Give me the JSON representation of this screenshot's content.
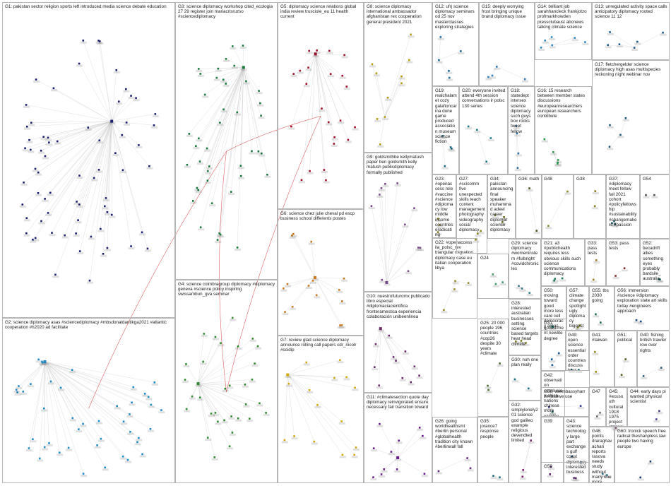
{
  "colors": {
    "background": "#ffffff",
    "box_border": "#b5b5b5",
    "edge_gray": "#c8c8c8",
    "edge_red": "#d23c3c"
  },
  "groups": [
    {
      "id": "G1",
      "label": "G1: pakistan sector religion sports left introduced media science debate education",
      "color": "#1b1e6e",
      "nodes": 70
    },
    {
      "id": "G2",
      "label": "G2: science diplomacy asas #sciencediplomacy #mbsdonaldantikga2021 #atlantic cooperation #h2020 ad facilitate",
      "color": "#1f8bc8",
      "nodes": 45
    },
    {
      "id": "G3",
      "label": "G3: science diplomacy workshop cited_ecologia 27 29 register join mariacrisruzso #sciencediplomacy",
      "color": "#1a7a3e",
      "nodes": 44
    },
    {
      "id": "G4",
      "label": "G4: science coimbragroup diplomacy #diplomacy geneva #science policy inspiring swissambun_gva seminar",
      "color": "#2e8b2e",
      "nodes": 33
    },
    {
      "id": "G5",
      "label": "G5: diplomacy science relations global india review trusciole_eu 11 health current",
      "color": "#a0102a",
      "nodes": 24
    },
    {
      "id": "G6",
      "label": "G6: science chez julie cheval pd escp business school differents postes",
      "color": "#c8781e",
      "nodes": 16
    },
    {
      "id": "G7",
      "label": "G7: review glad science diplomacy announce rolling call papers cdr_nicolr #scidip",
      "color": "#d2a80a",
      "nodes": 16
    },
    {
      "id": "G8",
      "label": "G8: science diplomacy international ambassador afghanistan rex cooperation general president 2021",
      "color": "#b59a0a",
      "nodes": 10
    },
    {
      "id": "G9",
      "label": "G9: goldsmithbe kellymatush paper ben goldsmith kelly matush publicdiplomacy formally published",
      "color": "#7a4a8a",
      "nodes": 12
    },
    {
      "id": "G10",
      "label": "G10: nuestrofuturomx publicado libro especial #diplomaciacientifica fronteramestica experiencia colaboración unibeenlinea",
      "color": "#6a2a6a",
      "nodes": 12
    },
    {
      "id": "G11",
      "label": "G11: #climatesection quote day diplomacy reinvigorated ensure necessary fair transition toward",
      "color": "#6a1a8a",
      "nodes": 12
    },
    {
      "id": "G12",
      "label": "G12: ufrj science diplomacy seminars od 25 nov masterclasses exploring strategies",
      "color": "#1a6a9a",
      "nodes": 5
    },
    {
      "id": "G13",
      "label": "G13: unregulated activity space calls anticipatory diplomacy rooted science 11 12",
      "color": "#1a5a8a",
      "nodes": 6
    },
    {
      "id": "G14",
      "label": "G14: brilliant job sarahhancleck frankjotzo profmarkhowden pressclubaust abcnews talking climate science",
      "color": "#2a8ac8",
      "nodes": 6
    },
    {
      "id": "G15",
      "label": "G15: deeply worrying frost bringing unique brand diplomacy issue",
      "color": "#2a7ab8",
      "nodes": 4
    },
    {
      "id": "G16",
      "label": "G16: 15 research between member states discussions #europeanresearchers european researchers contribute",
      "color": "#2a9a4a",
      "nodes": 5
    },
    {
      "id": "G17",
      "label": "G17: fletchergelder science diplomacy high asas multispecies reckoning night webinar nov",
      "color": "#1a5a7a",
      "nodes": 4
    },
    {
      "id": "G18",
      "label": "G18: statedept intersex science diplomacy such guys box rocks tweet fellow",
      "color": "#2a6a9a",
      "nodes": 4
    },
    {
      "id": "G19",
      "label": "G19: realchalamet cozy galafioncarina dune game produced association museum science fiction",
      "color": "#1a6a8a",
      "nodes": 4
    },
    {
      "id": "G20",
      "label": "G20: everyone invited attend 4th session conversations ir polsc 130 series",
      "color": "#1a7a8a",
      "nodes": 4
    },
    {
      "id": "G21",
      "label": "G21: a3 #publichealth requires less obvious skills such science communications diplomacy",
      "color": "#1a7a5a",
      "nodes": 3
    },
    {
      "id": "G22",
      "label": "G22: #openaccess ila_polsc_rev triangular migration diplomacy case eu italian cooperation libya",
      "color": "#9a8a2a",
      "nodes": 4
    },
    {
      "id": "G23",
      "label": "G23: #openaccess role #vaccine #science #diplomacy low middle income countries eradicating",
      "color": "#8a7a1a",
      "nodes": 3
    },
    {
      "id": "G24",
      "label": "G24",
      "color": "#3a9a6a",
      "nodes": 3
    },
    {
      "id": "G25",
      "label": "G25: 20 000 people 196 countries #cop26 despite 30 years #climate",
      "color": "#4a6a2a",
      "nodes": 3
    },
    {
      "id": "G26",
      "label": "G26: going worldhealthsmt #berlin personal #globalhealth tradition city known #berlinwall fall",
      "color": "#6a2a7a",
      "nodes": 3
    },
    {
      "id": "G27",
      "label": "G27: #scicomm five unexpected skills teach content management photography videography social diplomacy",
      "color": "#8a8a1a",
      "nodes": 3
    },
    {
      "id": "G28",
      "label": "G28: interested australian businesses setting science based targets hear head climate",
      "color": "#7a7a1a",
      "nodes": 3
    },
    {
      "id": "G29",
      "label": "G29: science diplomacy #womeninstem #fulbright #covidchronicles",
      "color": "#3a7a8a",
      "nodes": 3
    },
    {
      "id": "G30",
      "label": "G30: nuh one plan really",
      "color": "#1a6a8a",
      "nodes": 2
    },
    {
      "id": "G31",
      "label": "G31: government newlite degree",
      "color": "#1a5a9a",
      "nodes": 3
    },
    {
      "id": "G32",
      "label": "G32: simplylonely201 science god galileo example religious devendted limited",
      "color": "#7a1a6a",
      "nodes": 3
    },
    {
      "id": "G33",
      "label": "G33: pass tests",
      "color": "#9a7a1a",
      "nodes": 2
    },
    {
      "id": "G34",
      "label": "G34: pakistan announcing final speaker muhammad adeel career diplomat science diplomacy",
      "color": "#6a6a1a",
      "nodes": 3
    },
    {
      "id": "G35",
      "label": "G35: jorance7 response people",
      "color": "#1a6a7a",
      "nodes": 2
    },
    {
      "id": "G36",
      "label": "G36: math",
      "color": "#4a4a1a",
      "nodes": 2
    },
    {
      "id": "G37",
      "label": "G37: #diplomacy meet fellow fall 2021 cohort #policyfellowship #sustainability #changemakers #passion",
      "color": "#1a5a6a",
      "nodes": 3
    },
    {
      "id": "G38",
      "label": "G38",
      "color": "#8a7a1a",
      "nodes": 2
    },
    {
      "id": "G39",
      "label": "G39",
      "color": "#5a1a6a",
      "nodes": 2
    },
    {
      "id": "G40",
      "label": "G40: fishing british trawler row over rights",
      "color": "#2a5a7a",
      "nodes": 2
    },
    {
      "id": "G41",
      "label": "G41: #taiwan",
      "color": "#9a8a1a",
      "nodes": 2
    },
    {
      "id": "G42",
      "label": "G42: observation conclusion china nations chinese more vaccine covid genocide countries",
      "color": "#1a6a5a",
      "nodes": 2
    },
    {
      "id": "G43",
      "label": "G43: science technology large part exchanges gulf coast diplomacy interested business",
      "color": "#1a5a8a",
      "nodes": 2
    },
    {
      "id": "G44",
      "label": "G44: early days pi wanted physical scientist",
      "color": "#4a3a8a",
      "nodes": 2
    },
    {
      "id": "G45",
      "label": "G45: #ecusouth cultural 1918 1975 project strategies spanish diplomacy sphere academic",
      "color": "#7a2a6a",
      "nodes": 2
    },
    {
      "id": "G46",
      "label": "G46: points draraghavachari reports rasova needs study without many one more",
      "color": "#2a7a8a",
      "nodes": 2
    },
    {
      "id": "G47",
      "label": "G47",
      "color": "#6a6a6a",
      "nodes": 2
    },
    {
      "id": "G48",
      "label": "G48",
      "color": "#8a8a2a",
      "nodes": 2
    },
    {
      "id": "G49",
      "label": "G49: open science essential order countries discuss best ways protect red",
      "color": "#1a6a7a",
      "nodes": 2
    },
    {
      "id": "G50",
      "label": "G50: moving toward good more less care cell democracy areas life",
      "color": "#1a7a6a",
      "nodes": 2
    },
    {
      "id": "G51",
      "label": "G51: political",
      "color": "#5a5a1a",
      "nodes": 2
    },
    {
      "id": "G52",
      "label": "G52: becadrift allies something eyes probably bardsile_ australia",
      "color": "#1a5a5a",
      "nodes": 2
    },
    {
      "id": "G53",
      "label": "G53: pass tests",
      "color": "#7a2a2a",
      "nodes": 2
    },
    {
      "id": "G54",
      "label": "G54",
      "color": "#4a4a4a",
      "nodes": 2
    },
    {
      "id": "G55",
      "label": "G55: tbs 2030 going",
      "color": "#1a6a4a",
      "nodes": 2
    },
    {
      "id": "G56",
      "label": "G56: immersion #science #diplomacy exploration state art skills today #engineers approach",
      "color": "#1a4a7a",
      "nodes": 2
    },
    {
      "id": "G57",
      "label": "G57: climate change spotlight ugly diplomacy biggest challenge lifetime next generations",
      "color": "#8a8a1a",
      "nodes": 2
    },
    {
      "id": "G58",
      "label": "G58: usembassyharr zimbabwe use",
      "color": "#3a3a8a",
      "nodes": 2
    },
    {
      "id": "G59",
      "label": "G59",
      "color": "#5a2a6a",
      "nodes": 2
    },
    {
      "id": "G60",
      "label": "G60: tronick speech free radical theshanpless law people two having europe",
      "color": "#1a3a6a",
      "nodes": 2
    }
  ]
}
